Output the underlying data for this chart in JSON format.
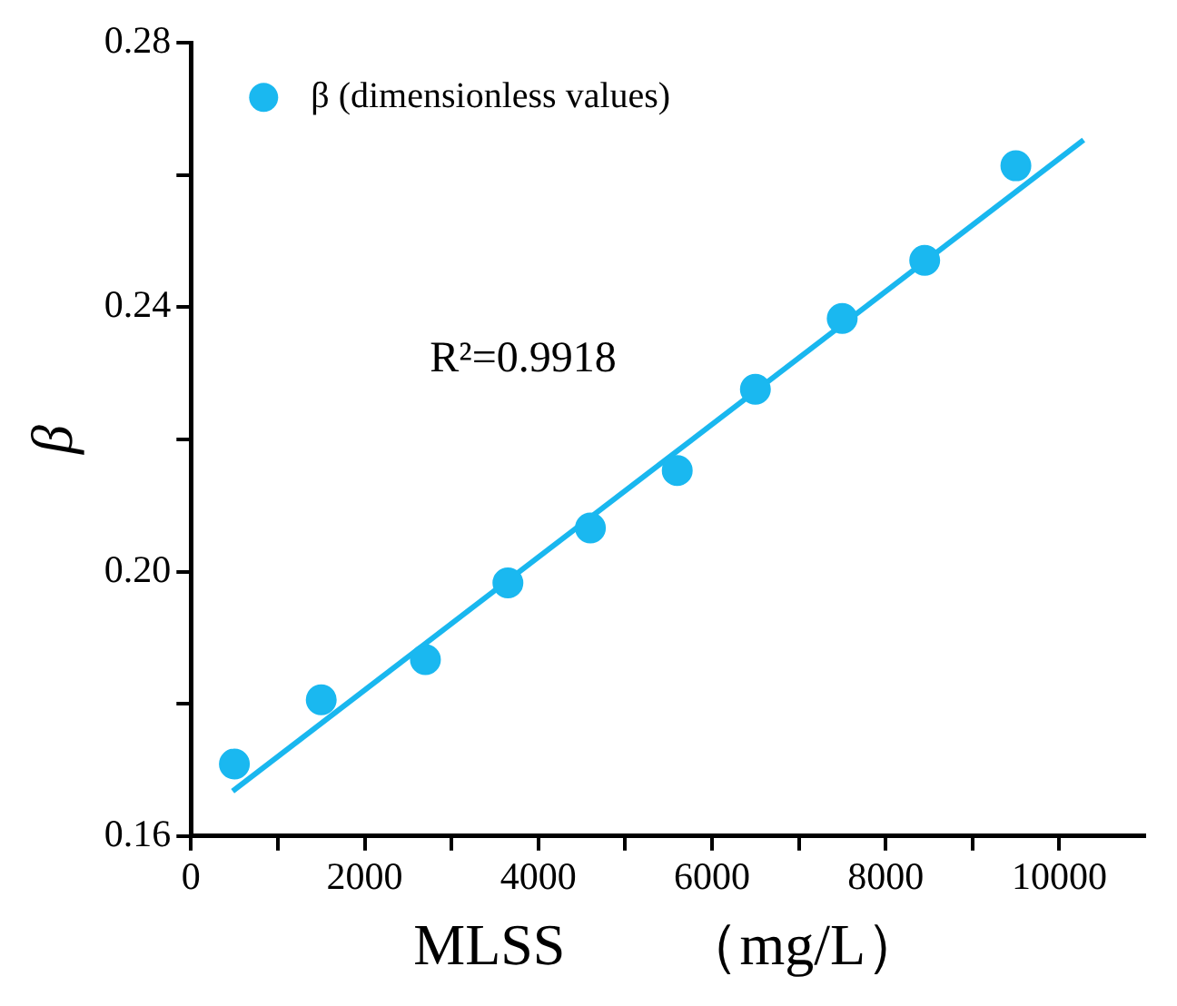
{
  "chart_data": {
    "type": "scatter",
    "xlabel": "MLSS        （mg/L）",
    "ylabel": "β",
    "x": [
      500,
      1500,
      2700,
      3650,
      4600,
      5600,
      6500,
      7500,
      8450,
      9500
    ],
    "series": [
      {
        "name": "β (dimensionless values)",
        "color": "#1ab8f0",
        "values": [
          0.1709,
          0.1806,
          0.1867,
          0.1983,
          0.2066,
          0.2153,
          0.2276,
          0.2383,
          0.2471,
          0.2614
        ]
      },
      {
        "type": "line",
        "color": "#19b7ef",
        "x": [
          480,
          10280
        ],
        "values": [
          0.1668,
          0.2653
        ],
        "marker": "none"
      }
    ],
    "annotations": [
      "R²=0.9918"
    ],
    "xlim": [
      0,
      11000
    ],
    "xticks": [
      0,
      {
        "value": 1000,
        "label": null
      },
      2000,
      {
        "value": 3000,
        "label": null
      },
      4000,
      {
        "value": 5000,
        "label": null
      },
      6000,
      {
        "value": 7000,
        "label": null
      },
      8000,
      {
        "value": 9000,
        "label": null
      },
      10000
    ],
    "ylim": [
      0.16,
      0.28
    ],
    "yticks": [
      {
        "value": 0.16,
        "label": "0.16"
      },
      {
        "value": 0.18,
        "label": null
      },
      {
        "value": 0.2,
        "label": "0.20"
      },
      {
        "value": 0.22,
        "label": null
      },
      {
        "value": 0.24,
        "label": "0.24"
      },
      {
        "value": 0.26,
        "label": null
      },
      {
        "value": 0.28,
        "label": "0.28"
      }
    ],
    "legend": "top left",
    "marker": "circle",
    "grid": false
  }
}
